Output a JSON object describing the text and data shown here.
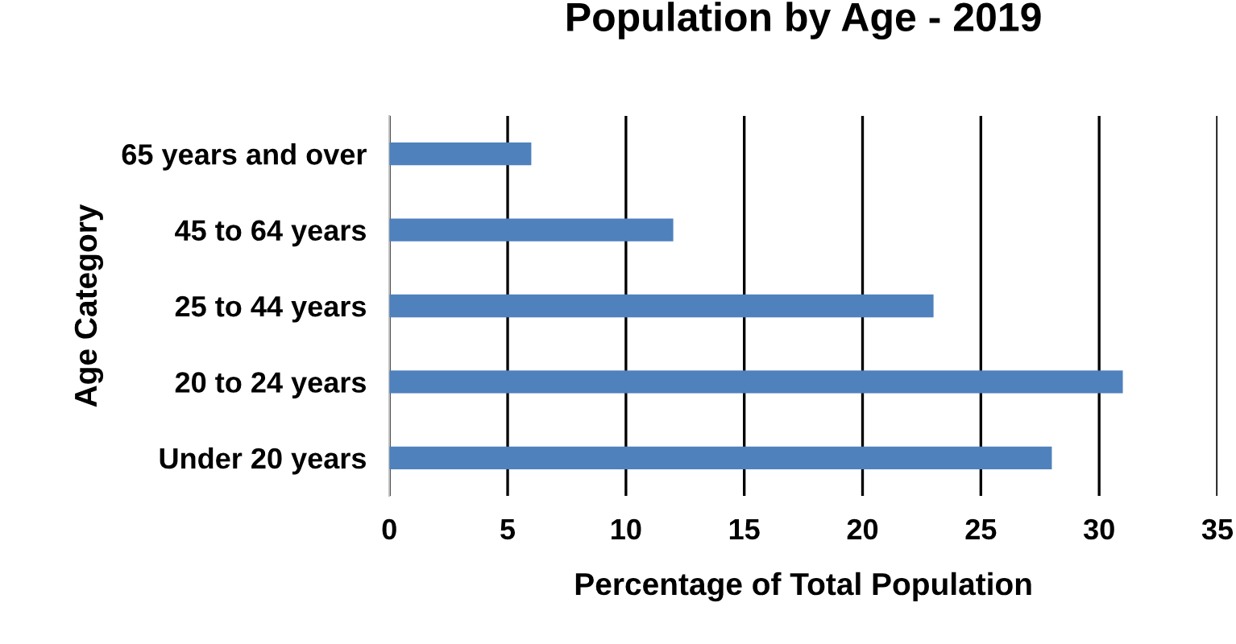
{
  "chart_data": {
    "type": "bar",
    "orientation": "horizontal",
    "title": "Population by Age - 2019",
    "xlabel": "Percentage of Total Population",
    "ylabel": "Age Category",
    "categories": [
      "65 years and over",
      "45 to 64 years",
      "25 to 44 years",
      "20 to 24 years",
      "Under 20 years"
    ],
    "values": [
      6,
      12,
      23,
      31,
      28
    ],
    "color": "#4f81bd",
    "xlim": [
      0,
      35
    ],
    "xticks": [
      0,
      5,
      10,
      15,
      20,
      25,
      30,
      35
    ],
    "grid": "x",
    "legend": false
  }
}
